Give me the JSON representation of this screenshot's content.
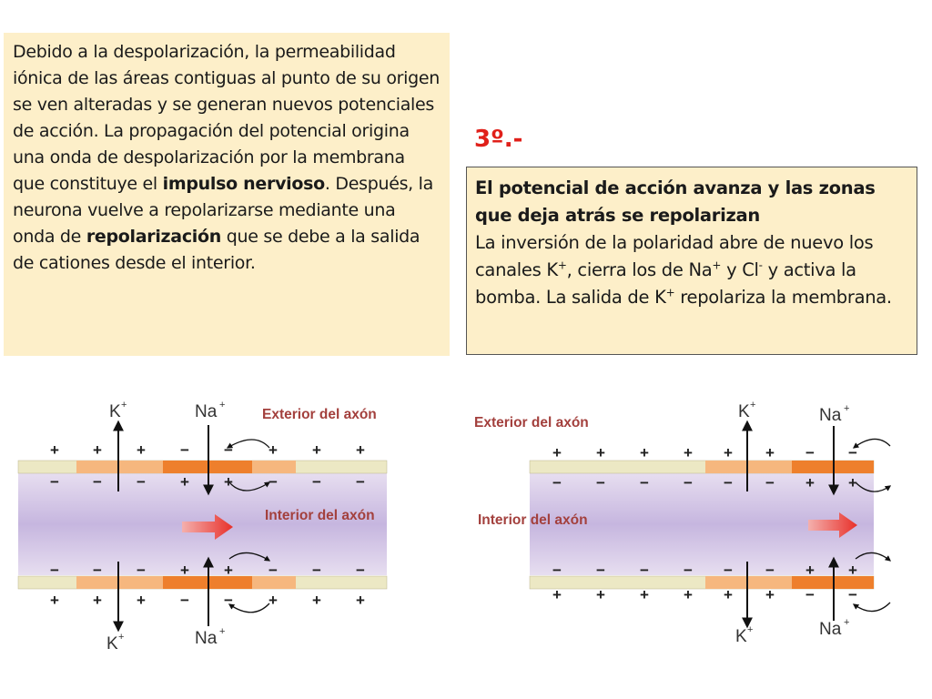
{
  "left_text": {
    "p1": "Debido a la despolarización, la permeabilidad iónica de las áreas contiguas al punto de su origen se ven alteradas y se generan nuevos potenciales de acción. La propagación del potencial origina una onda de despolarización por la membrana que constituye el ",
    "b1": "impulso nervioso",
    "p2": ". Después, la neurona vuelve a repolarizarse mediante una onda de ",
    "b2": "repolarización",
    "p3": " que se debe a la salida de cationes desde el interior."
  },
  "step_label": "3º.-",
  "right_text": {
    "heading": "El potencial de acción avanza y las zonas que deja atrás se repolarizan",
    "t1": "La inversión de la polaridad abre de nuevo los canales K",
    "sup_plus": "+",
    "t2": ", cierra los de Na",
    "t3": " y Cl",
    "sup_minus": "-",
    "t4": " y activa la bomba. La salida de K",
    "t5": " repolariza la membrana."
  },
  "ions": {
    "k": "K",
    "na": "Na",
    "plus": "+"
  },
  "diagram_left": {
    "exterior": "Exterior del axón",
    "interior": "Interior del axón"
  },
  "diagram_right": {
    "exterior": "Exterior del axón",
    "interior": "Interior del axón"
  },
  "charges": {
    "plus": "+",
    "minus": "−"
  },
  "colors": {
    "box_bg": "#fdefc9",
    "step_red": "#e0201a",
    "label_red": "#a3403d",
    "membrane_base": "#ece8c4",
    "membrane_light": "#f6b77e",
    "membrane_dark": "#ee7f2c",
    "axon_purple": "#cbbde1",
    "arrow_red": "#e8423c"
  }
}
